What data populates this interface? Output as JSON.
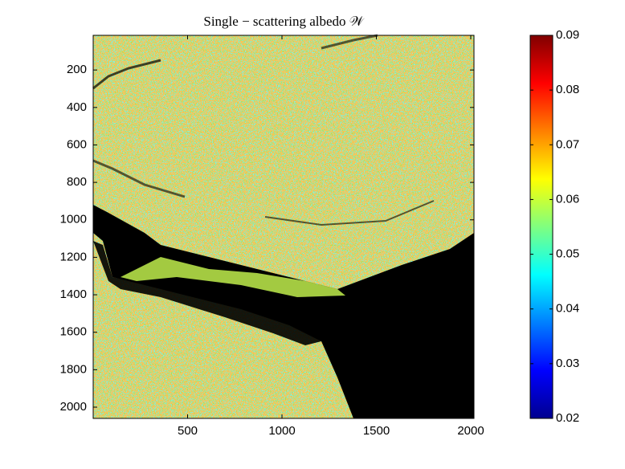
{
  "chart_data": {
    "type": "heatmap",
    "title": "Single − scattering albedo 𝒲",
    "xlim": [
      0,
      2017
    ],
    "xticks": [
      500,
      1000,
      1500,
      2000
    ],
    "ylim": [
      15,
      2060
    ],
    "yticks": [
      200,
      400,
      600,
      800,
      1000,
      1200,
      1400,
      1600,
      1800,
      2000
    ],
    "y_reversed": true,
    "colormap": "jet",
    "clim": [
      0.02,
      0.09
    ],
    "cticks": [
      0.02,
      0.03,
      0.04,
      0.05,
      0.06,
      0.07,
      0.08,
      0.09
    ]
  }
}
